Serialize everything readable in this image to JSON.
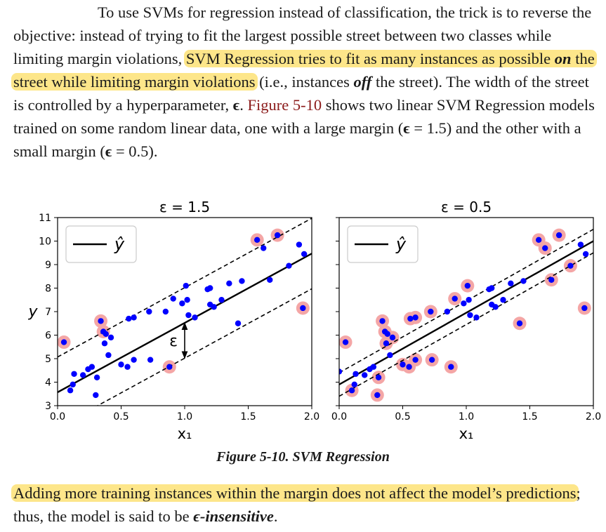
{
  "paragraph1": {
    "t1": "To use SVMs for regression instead of classification, the trick is to reverse the objective: instead of trying to fit the largest possible street between two classes while limiting margin violations, ",
    "hl1": "SVM Regression tries to fit as many instances as possible ",
    "hl1_em": "on",
    "hl1_end": " the street while limiting margin violations",
    "t2": " (i.e., instances ",
    "em_off": "off",
    "t3": " the street). The width of the street is controlled by a hyperparameter, ",
    "epsilon": "ϵ",
    "t4": ". ",
    "figure_ref": "Figure 5-10",
    "t5": " shows two linear SVM Regression models trained on some random linear data, one with a large margin (",
    "eps1": "ϵ",
    "t6": " = 1.5) and the other with a small margin (",
    "eps2": "ϵ",
    "t7": " = 0.5)."
  },
  "figure": {
    "caption": "Figure 5-10. SVM Regression"
  },
  "paragraph2": {
    "hl": "Adding more training instances within the margin does not affect the model’s predictions",
    "t1": "; thus, the model is said to be ",
    "em": "ϵ-insensitive",
    "t2": "."
  },
  "colors": {
    "highlight": "#fde68a",
    "points": "#0000ff",
    "support_vectors": "#f4a6a6",
    "figure_ref": "#8b1a1a"
  },
  "chart_data": [
    {
      "type": "scatter",
      "title": "ε = 1.5",
      "xlabel": "x₁",
      "ylabel": "y",
      "xlim": [
        0.0,
        2.0
      ],
      "ylim": [
        3,
        11
      ],
      "xticks": [
        "0.0",
        "0.5",
        "1.0",
        "1.5",
        "2.0"
      ],
      "yticks": [
        "3",
        "4",
        "5",
        "6",
        "7",
        "8",
        "9",
        "10",
        "11"
      ],
      "legend": {
        "label": "ŷ",
        "position": "top-left"
      },
      "epsilon": 1.5,
      "epsilon_annotation": "ε",
      "fit": {
        "intercept": 3.57,
        "slope": 2.95
      },
      "points": [
        [
          0.05,
          5.7
        ],
        [
          0.1,
          3.65
        ],
        [
          0.12,
          3.9
        ],
        [
          0.13,
          4.35
        ],
        [
          0.2,
          4.3
        ],
        [
          0.24,
          4.55
        ],
        [
          0.27,
          4.65
        ],
        [
          0.3,
          3.45
        ],
        [
          0.31,
          4.2
        ],
        [
          0.34,
          6.6
        ],
        [
          0.36,
          6.15
        ],
        [
          0.37,
          5.65
        ],
        [
          0.38,
          6.05
        ],
        [
          0.4,
          5.15
        ],
        [
          0.42,
          5.9
        ],
        [
          0.5,
          4.75
        ],
        [
          0.55,
          4.65
        ],
        [
          0.56,
          6.7
        ],
        [
          0.6,
          4.95
        ],
        [
          0.6,
          6.75
        ],
        [
          0.72,
          7.0
        ],
        [
          0.73,
          4.95
        ],
        [
          0.85,
          7.0
        ],
        [
          0.88,
          4.65
        ],
        [
          0.91,
          7.55
        ],
        [
          0.98,
          7.35
        ],
        [
          1.01,
          8.1
        ],
        [
          1.02,
          7.5
        ],
        [
          1.03,
          6.85
        ],
        [
          1.08,
          6.75
        ],
        [
          1.18,
          7.95
        ],
        [
          1.2,
          8.0
        ],
        [
          1.2,
          7.3
        ],
        [
          1.23,
          7.2
        ],
        [
          1.29,
          7.5
        ],
        [
          1.35,
          8.2
        ],
        [
          1.42,
          6.5
        ],
        [
          1.45,
          8.3
        ],
        [
          1.57,
          10.05
        ],
        [
          1.62,
          9.7
        ],
        [
          1.67,
          8.35
        ],
        [
          1.73,
          10.25
        ],
        [
          1.82,
          8.95
        ],
        [
          1.9,
          9.85
        ],
        [
          1.93,
          7.15
        ],
        [
          1.94,
          9.45
        ]
      ],
      "outside_points": [
        [
          0.05,
          5.7
        ],
        [
          0.34,
          6.6
        ],
        [
          0.36,
          6.15
        ],
        [
          0.88,
          4.65
        ],
        [
          1.57,
          10.05
        ],
        [
          1.73,
          10.25
        ],
        [
          1.93,
          7.15
        ]
      ]
    },
    {
      "type": "scatter",
      "title": "ε = 0.5",
      "xlabel": "x₁",
      "ylabel": "",
      "xlim": [
        0.0,
        2.0
      ],
      "ylim": [
        3,
        11
      ],
      "xticks": [
        "0.0",
        "0.5",
        "1.0",
        "1.5",
        "2.0"
      ],
      "legend": {
        "label": "ŷ",
        "position": "top-left"
      },
      "epsilon": 0.5,
      "fit": {
        "intercept": 3.9,
        "slope": 3.05
      },
      "points": [
        [
          0.05,
          5.7
        ],
        [
          0.1,
          3.65
        ],
        [
          0.12,
          3.9
        ],
        [
          0.13,
          4.35
        ],
        [
          0.2,
          4.3
        ],
        [
          0.24,
          4.55
        ],
        [
          0.27,
          4.65
        ],
        [
          0.3,
          3.45
        ],
        [
          0.31,
          4.2
        ],
        [
          0.34,
          6.6
        ],
        [
          0.36,
          6.15
        ],
        [
          0.37,
          5.65
        ],
        [
          0.38,
          6.05
        ],
        [
          0.4,
          5.15
        ],
        [
          0.42,
          5.9
        ],
        [
          0.5,
          4.75
        ],
        [
          0.55,
          4.65
        ],
        [
          0.56,
          6.7
        ],
        [
          0.6,
          4.95
        ],
        [
          0.6,
          6.75
        ],
        [
          0.72,
          7.0
        ],
        [
          0.73,
          4.95
        ],
        [
          0.85,
          7.0
        ],
        [
          0.88,
          4.65
        ],
        [
          0.91,
          7.55
        ],
        [
          0.98,
          7.35
        ],
        [
          1.01,
          8.1
        ],
        [
          1.02,
          7.5
        ],
        [
          1.03,
          6.85
        ],
        [
          1.08,
          6.75
        ],
        [
          1.18,
          7.95
        ],
        [
          1.2,
          8.0
        ],
        [
          1.2,
          7.3
        ],
        [
          1.23,
          7.2
        ],
        [
          1.29,
          7.5
        ],
        [
          1.35,
          8.2
        ],
        [
          1.42,
          6.5
        ],
        [
          1.45,
          8.3
        ],
        [
          1.57,
          10.05
        ],
        [
          1.62,
          9.7
        ],
        [
          1.67,
          8.35
        ],
        [
          1.73,
          10.25
        ],
        [
          1.82,
          8.95
        ],
        [
          1.9,
          9.85
        ],
        [
          1.93,
          7.15
        ],
        [
          1.94,
          9.45
        ],
        [
          0.0,
          4.45
        ]
      ],
      "outside_points": [
        [
          0.05,
          5.7
        ],
        [
          0.1,
          3.65
        ],
        [
          0.3,
          3.45
        ],
        [
          0.31,
          4.2
        ],
        [
          0.34,
          6.6
        ],
        [
          0.36,
          6.15
        ],
        [
          0.37,
          5.65
        ],
        [
          0.42,
          5.9
        ],
        [
          0.5,
          4.75
        ],
        [
          0.55,
          4.65
        ],
        [
          0.56,
          6.7
        ],
        [
          0.6,
          4.95
        ],
        [
          0.6,
          6.75
        ],
        [
          0.72,
          7.0
        ],
        [
          0.73,
          4.95
        ],
        [
          0.88,
          4.65
        ],
        [
          0.91,
          7.55
        ],
        [
          1.01,
          8.1
        ],
        [
          1.42,
          6.5
        ],
        [
          1.57,
          10.05
        ],
        [
          1.62,
          9.7
        ],
        [
          1.67,
          8.35
        ],
        [
          1.73,
          10.25
        ],
        [
          1.82,
          8.95
        ],
        [
          1.93,
          7.15
        ]
      ]
    }
  ]
}
